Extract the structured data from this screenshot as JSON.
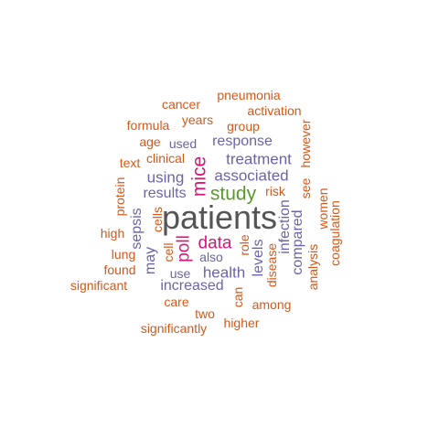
{
  "colors": {
    "orange": "#d4581a",
    "purple": "#6b64a9",
    "pink": "#d4187a",
    "green": "#5a9a2a",
    "dark": "#555555"
  },
  "words": [
    {
      "text": "patients",
      "color": "dark"
    },
    {
      "text": "study",
      "color": "green"
    },
    {
      "text": "mice",
      "color": "pink"
    },
    {
      "text": "data",
      "color": "pink"
    },
    {
      "text": "poll",
      "color": "pink"
    },
    {
      "text": "associated",
      "color": "purple"
    },
    {
      "text": "treatment",
      "color": "purple"
    },
    {
      "text": "response",
      "color": "purple"
    },
    {
      "text": "using",
      "color": "purple"
    },
    {
      "text": "results",
      "color": "purple"
    },
    {
      "text": "health",
      "color": "purple"
    },
    {
      "text": "increased",
      "color": "purple"
    },
    {
      "text": "infection",
      "color": "purple"
    },
    {
      "text": "compared",
      "color": "purple"
    },
    {
      "text": "levels",
      "color": "purple"
    },
    {
      "text": "sepsis",
      "color": "purple"
    },
    {
      "text": "may",
      "color": "purple"
    },
    {
      "text": "used",
      "color": "purple"
    },
    {
      "text": "also",
      "color": "purple"
    },
    {
      "text": "use",
      "color": "purple"
    },
    {
      "text": "pneumonia",
      "color": "orange"
    },
    {
      "text": "cancer",
      "color": "orange"
    },
    {
      "text": "activation",
      "color": "orange"
    },
    {
      "text": "formula",
      "color": "orange"
    },
    {
      "text": "years",
      "color": "orange"
    },
    {
      "text": "group",
      "color": "orange"
    },
    {
      "text": "age",
      "color": "orange"
    },
    {
      "text": "however",
      "color": "orange"
    },
    {
      "text": "clinical",
      "color": "orange"
    },
    {
      "text": "text",
      "color": "orange"
    },
    {
      "text": "see",
      "color": "orange"
    },
    {
      "text": "protein",
      "color": "orange"
    },
    {
      "text": "risk",
      "color": "orange"
    },
    {
      "text": "women",
      "color": "orange"
    },
    {
      "text": "coagulation",
      "color": "orange"
    },
    {
      "text": "high",
      "color": "orange"
    },
    {
      "text": "cells",
      "color": "orange"
    },
    {
      "text": "lung",
      "color": "orange"
    },
    {
      "text": "role",
      "color": "orange"
    },
    {
      "text": "found",
      "color": "orange"
    },
    {
      "text": "cell",
      "color": "orange"
    },
    {
      "text": "disease",
      "color": "orange"
    },
    {
      "text": "analysis",
      "color": "orange"
    },
    {
      "text": "significant",
      "color": "orange"
    },
    {
      "text": "can",
      "color": "orange"
    },
    {
      "text": "care",
      "color": "orange"
    },
    {
      "text": "among",
      "color": "orange"
    },
    {
      "text": "two",
      "color": "orange"
    },
    {
      "text": "higher",
      "color": "orange"
    },
    {
      "text": "significantly",
      "color": "orange"
    }
  ]
}
